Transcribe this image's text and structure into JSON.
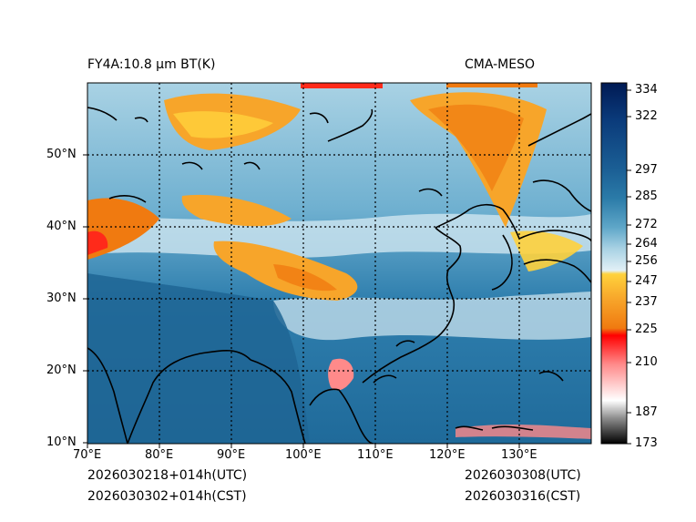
{
  "header": {
    "title_left": "FY4A:10.8 µm BT(K)",
    "title_right": "CMA-MESO"
  },
  "map": {
    "lat_labels": [
      "10°N",
      "20°N",
      "30°N",
      "40°N",
      "50°N"
    ],
    "lon_labels": [
      "70°E",
      "80°E",
      "90°E",
      "100°E",
      "110°E",
      "120°E",
      "130°E"
    ]
  },
  "colorbar": {
    "unit": "K",
    "tick_labels": [
      "334",
      "322",
      "297",
      "285",
      "272",
      "264",
      "256",
      "247",
      "237",
      "225",
      "210",
      "187",
      "173"
    ],
    "colors": {
      "cold": "#000000",
      "gray": "#8c8c8c",
      "red": "#ff0000",
      "orange": "#f07a10",
      "yellow": "#ffd23c",
      "white": "#ffffff",
      "light_blue": "#a9d2e4",
      "blue": "#2b7ba8",
      "navy": "#001a54"
    }
  },
  "footer": {
    "init_utc": "2026030218+014h(UTC)",
    "init_cst": "2026030302+014h(CST)",
    "valid_utc": "2026030308(UTC)",
    "valid_cst": "2026030316(CST)"
  }
}
